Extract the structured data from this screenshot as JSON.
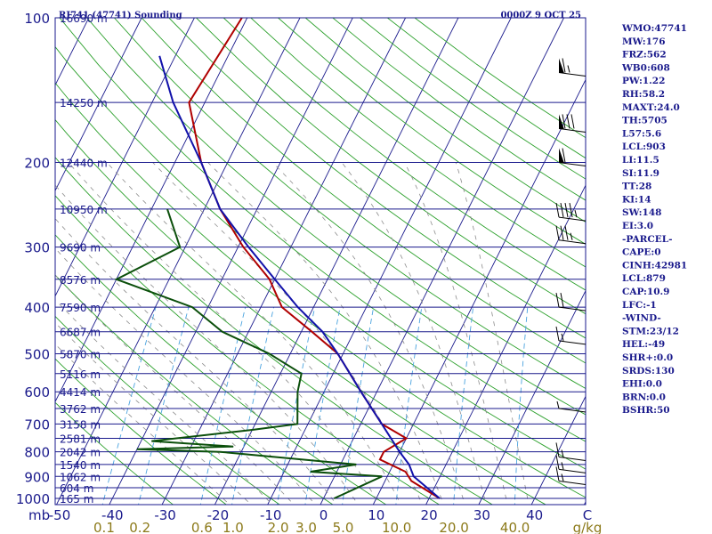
{
  "header": {
    "station": "RJ741 (47741) Sounding",
    "time": "0000Z  9 OCT 25"
  },
  "colors": {
    "isobar": "#1a1a8c",
    "skewed_isotherm": "#1a1a8c",
    "dry_adiabat": "#2ca02c",
    "moist_adiabat": "#8c8c8c",
    "mixing_ratio": "#4aa3df",
    "temperature": "#b00000",
    "dewpoint": "#0b4f0b",
    "parcel": "#1111aa",
    "axis_text": "#1a1a8c",
    "mixing_ratio_text": "#8c7a1a"
  },
  "chart_data": {
    "type": "line",
    "title": "RJ741 (47741) Sounding",
    "xlabel": "",
    "ylabel": "mb",
    "x_unit_right": "C",
    "mixing_ratio_unit": "g/kg",
    "pressure_ticks": [
      100,
      200,
      300,
      400,
      500,
      600,
      700,
      800,
      900,
      1000
    ],
    "temperature_ticks": [
      "-50",
      "-40",
      "-30",
      "-20",
      "-10",
      "0",
      "10",
      "20",
      "30",
      "40",
      "C"
    ],
    "mixing_ratio_ticks": [
      "0.1",
      "0.2",
      "0.6",
      "1.0",
      "2.0",
      "3.0",
      "5.0",
      "10.0",
      "20.0",
      "40.0"
    ],
    "height_labels": [
      {
        "p": 100,
        "label": "16690 m"
      },
      {
        "p": 150,
        "label": "14250 m"
      },
      {
        "p": 200,
        "label": "12440 m"
      },
      {
        "p": 250,
        "label": "10950 m"
      },
      {
        "p": 300,
        "label": "9690 m"
      },
      {
        "p": 350,
        "label": "8576 m"
      },
      {
        "p": 400,
        "label": "7590 m"
      },
      {
        "p": 450,
        "label": "6687 m"
      },
      {
        "p": 500,
        "label": "5870 m"
      },
      {
        "p": 550,
        "label": "5116 m"
      },
      {
        "p": 600,
        "label": "4414 m"
      },
      {
        "p": 650,
        "label": "3762 m"
      },
      {
        "p": 700,
        "label": "3158 m"
      },
      {
        "p": 750,
        "label": "2581 m"
      },
      {
        "p": 800,
        "label": "2042 m"
      },
      {
        "p": 850,
        "label": "1540 m"
      },
      {
        "p": 900,
        "label": "1062 m"
      },
      {
        "p": 950,
        "label": "604 m"
      },
      {
        "p": 1000,
        "label": "165 m"
      }
    ],
    "series": [
      {
        "name": "Temperature",
        "points": [
          [
            100,
            -61
          ],
          [
            150,
            -63
          ],
          [
            200,
            -55
          ],
          [
            250,
            -47
          ],
          [
            300,
            -39
          ],
          [
            350,
            -31
          ],
          [
            400,
            -26
          ],
          [
            450,
            -18
          ],
          [
            500,
            -11
          ],
          [
            600,
            -3
          ],
          [
            700,
            4
          ],
          [
            750,
            10
          ],
          [
            800,
            7
          ],
          [
            830,
            7
          ],
          [
            880,
            13
          ],
          [
            920,
            15
          ],
          [
            1000,
            22
          ]
        ]
      },
      {
        "name": "Dewpoint",
        "points": [
          [
            250,
            -57
          ],
          [
            300,
            -51
          ],
          [
            350,
            -60
          ],
          [
            400,
            -43
          ],
          [
            450,
            -35
          ],
          [
            500,
            -24
          ],
          [
            550,
            -16
          ],
          [
            600,
            -15
          ],
          [
            700,
            -12
          ],
          [
            720,
            -20
          ],
          [
            760,
            -38
          ],
          [
            780,
            -22
          ],
          [
            790,
            -40
          ],
          [
            800,
            -24
          ],
          [
            850,
            3
          ],
          [
            880,
            -5
          ],
          [
            900,
            9
          ],
          [
            1000,
            2
          ]
        ]
      },
      {
        "name": "Parcel",
        "points": [
          [
            120,
            -73
          ],
          [
            150,
            -66
          ],
          [
            200,
            -55
          ],
          [
            250,
            -47
          ],
          [
            300,
            -38
          ],
          [
            350,
            -30
          ],
          [
            400,
            -23
          ],
          [
            450,
            -16
          ],
          [
            500,
            -11
          ],
          [
            600,
            -3
          ],
          [
            700,
            4
          ],
          [
            800,
            10
          ],
          [
            850,
            13
          ],
          [
            900,
            15
          ],
          [
            1000,
            22
          ]
        ]
      }
    ],
    "wind_barbs": [
      {
        "p": 130,
        "speed_kt": 65
      },
      {
        "p": 170,
        "speed_kt": 80
      },
      {
        "p": 200,
        "speed_kt": 60
      },
      {
        "p": 260,
        "speed_kt": 45
      },
      {
        "p": 290,
        "speed_kt": 35
      },
      {
        "p": 400,
        "speed_kt": 20
      },
      {
        "p": 470,
        "speed_kt": 15
      },
      {
        "p": 650,
        "speed_kt": 5
      },
      {
        "p": 820,
        "speed_kt": 15
      },
      {
        "p": 870,
        "speed_kt": 15
      },
      {
        "p": 920,
        "speed_kt": 15
      }
    ]
  },
  "indices": [
    "WMO:47741",
    "MW:176",
    "FRZ:562",
    "WB0:608",
    "PW:1.22",
    "RH:58.2",
    "MAXT:24.0",
    "TH:5705",
    "L57:5.6",
    "LCL:903",
    "LI:11.5",
    "SI:11.9",
    "TT:28",
    "KI:14",
    "SW:148",
    "EI:3.0",
    "-PARCEL-",
    "CAPE:0",
    "CINH:42981",
    "LCL:879",
    "CAP:10.9",
    "LFC:-1",
    "-WIND-",
    "STM:23/12",
    "HEL:-49",
    "SHR+:0.0",
    "SRDS:130",
    "EHI:0.0",
    "BRN:0.0",
    "BSHR:50"
  ]
}
